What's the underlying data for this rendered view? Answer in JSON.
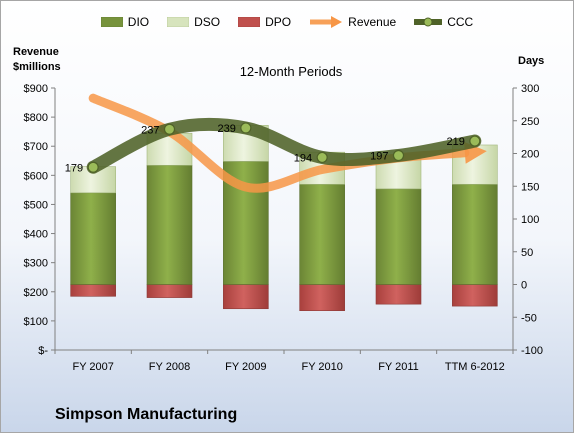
{
  "legend": {
    "dio": "DIO",
    "dso": "DSO",
    "dpo": "DPO",
    "revenue": "Revenue",
    "ccc": "CCC"
  },
  "labels": {
    "left_axis": "Revenue $millions",
    "left_axis_line1": "Revenue",
    "left_axis_line2": "$millions",
    "right_axis": "Days",
    "subtitle": "12-Month Periods",
    "company": "Simpson Manufacturing"
  },
  "colors": {
    "dio": "#77933c",
    "dso": "#d7e4bd",
    "dpo": "#c0504d",
    "revenue": "#f79646",
    "ccc": "#4f6228"
  },
  "chart_data": {
    "type": "bar",
    "title": "12-Month Periods",
    "categories": [
      "FY 2007",
      "FY 2008",
      "FY 2009",
      "FY 2010",
      "FY 2011",
      "TTM 6-2012"
    ],
    "left_axis": {
      "label": "Revenue $millions",
      "ylim": [
        0,
        900
      ],
      "ticks": [
        "$-",
        "$100",
        "$200",
        "$300",
        "$400",
        "$500",
        "$600",
        "$700",
        "$800",
        "$900"
      ]
    },
    "right_axis": {
      "label": "Days",
      "ylim": [
        -100,
        300
      ],
      "ticks": [
        "-100",
        "-50",
        "0",
        "50",
        "100",
        "150",
        "200",
        "250",
        "300"
      ]
    },
    "series": [
      {
        "name": "DIO",
        "type": "stacked-bar",
        "axis": "right",
        "values": [
          140,
          182,
          188,
          153,
          146,
          153
        ]
      },
      {
        "name": "DSO",
        "type": "stacked-bar",
        "axis": "right",
        "values": [
          40,
          49,
          55,
          49,
          52,
          60
        ]
      },
      {
        "name": "DPO",
        "type": "bar-negative",
        "axis": "right",
        "values": [
          -18,
          -20,
          -37,
          -40,
          -30,
          -33
        ]
      },
      {
        "name": "Revenue",
        "type": "line",
        "axis": "left",
        "values": [
          865,
          750,
          560,
          620,
          660,
          680
        ]
      },
      {
        "name": "CCC",
        "type": "line",
        "axis": "right",
        "values": [
          179,
          237,
          239,
          194,
          197,
          219
        ],
        "data_labels": [
          "179",
          "237",
          "239",
          "194",
          "197",
          "219"
        ]
      }
    ],
    "legend_position": "top",
    "grid": false
  }
}
